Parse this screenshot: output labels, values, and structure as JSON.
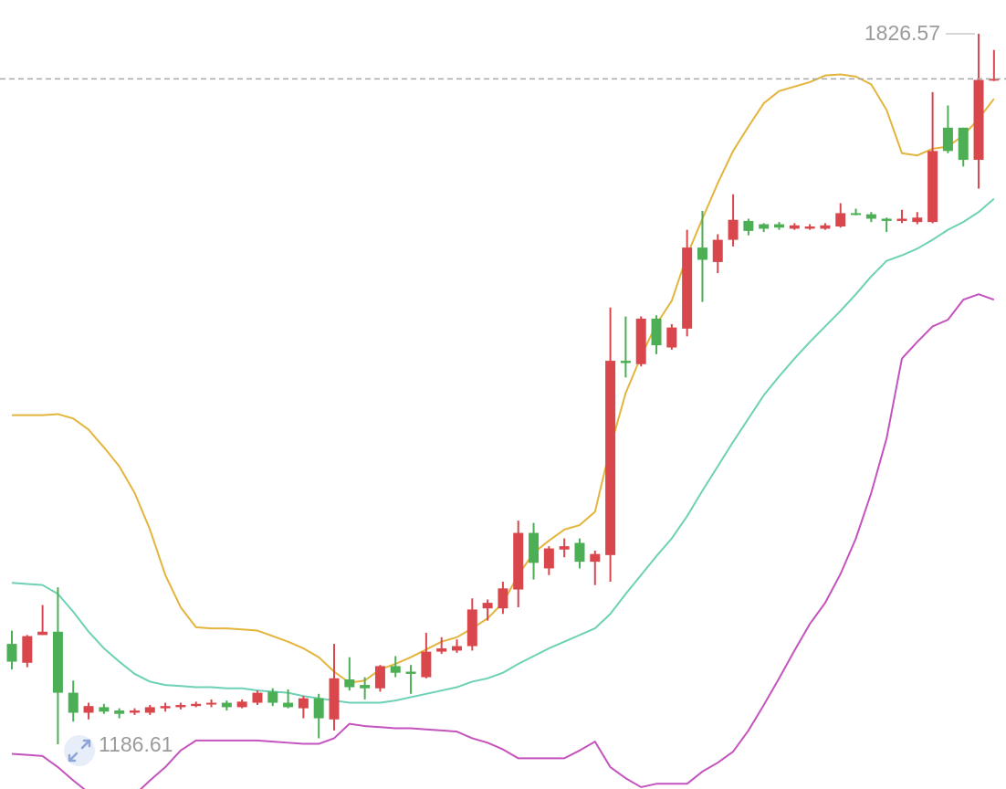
{
  "chart_data": {
    "type": "candlestick",
    "up_color": "#d9474d",
    "down_color": "#4cae55",
    "ylim": [
      1146.3,
      1857
    ],
    "open": [
      1277,
      1260,
      1285,
      1288,
      1233,
      1215,
      1220,
      1217,
      1215,
      1215,
      1219,
      1220,
      1221,
      1223,
      1224,
      1220,
      1224,
      1234,
      1224,
      1219,
      1228,
      1209,
      1245,
      1240,
      1237,
      1257,
      1252,
      1247,
      1270,
      1271,
      1275,
      1309,
      1309,
      1326,
      1377,
      1345,
      1362,
      1368,
      1351,
      1357,
      1532,
      1529,
      1570,
      1544,
      1561,
      1634,
      1621,
      1641,
      1658,
      1655,
      1655,
      1651,
      1651,
      1651,
      1653,
      1665,
      1664,
      1660,
      1658,
      1657,
      1657,
      1742,
      1742,
      1713,
      1785
    ],
    "high": [
      1289,
      1285,
      1312,
      1328,
      1244,
      1224,
      1223,
      1219,
      1219,
      1222,
      1224,
      1224,
      1225,
      1227,
      1226,
      1227,
      1235,
      1237,
      1236,
      1230,
      1232,
      1277,
      1265,
      1247,
      1258,
      1266,
      1258,
      1287,
      1283,
      1281,
      1318,
      1317,
      1333,
      1388,
      1386,
      1365,
      1372,
      1372,
      1361,
      1580,
      1572,
      1572,
      1573,
      1565,
      1650,
      1667,
      1646,
      1682,
      1660,
      1656,
      1657,
      1656,
      1655,
      1656,
      1674,
      1669,
      1666,
      1661,
      1668,
      1666,
      1774,
      1762,
      1742,
      1826.57,
      1812
    ],
    "low": [
      1254,
      1256,
      1285,
      1186.61,
      1207,
      1209,
      1214,
      1210,
      1213,
      1213,
      1216,
      1218,
      1220,
      1220,
      1217,
      1219,
      1222,
      1221,
      1219,
      1210,
      1192,
      1199,
      1235,
      1227,
      1234,
      1247,
      1232,
      1246,
      1268,
      1269,
      1271,
      1298,
      1304,
      1310,
      1335,
      1339,
      1355,
      1345,
      1330,
      1333,
      1517,
      1527,
      1538,
      1542,
      1554,
      1585,
      1611,
      1635,
      1645,
      1648,
      1650,
      1650,
      1650,
      1650,
      1652,
      1663,
      1657,
      1648,
      1656,
      1655,
      1656,
      1719,
      1707,
      1687,
      1784
    ],
    "close": [
      1261,
      1284,
      1288,
      1233,
      1215,
      1221,
      1216,
      1214,
      1217,
      1220,
      1221,
      1222,
      1223,
      1224,
      1220,
      1225,
      1233,
      1224,
      1220,
      1228,
      1210,
      1246,
      1238,
      1237,
      1257,
      1251,
      1250,
      1270,
      1273,
      1275,
      1308,
      1314,
      1327,
      1377,
      1350,
      1363,
      1365,
      1351,
      1358,
      1532,
      1530,
      1570,
      1546,
      1562,
      1634,
      1623,
      1641,
      1659,
      1649,
      1651,
      1652,
      1654,
      1653,
      1654,
      1665,
      1664,
      1660,
      1658,
      1660,
      1661,
      1721,
      1721,
      1713,
      1785,
      1786
    ],
    "lines": [
      {
        "color": "#e3b53c",
        "values": [
          1483,
          1483,
          1483,
          1484,
          1480,
          1470,
          1454,
          1437,
          1413,
          1380,
          1339,
          1310,
          1292,
          1291,
          1291,
          1290,
          1289,
          1284,
          1279,
          1273,
          1265,
          1252,
          1242,
          1244,
          1254,
          1259,
          1265,
          1272,
          1279,
          1283,
          1291,
          1300,
          1314,
          1339,
          1359,
          1370,
          1380,
          1384,
          1396,
          1454,
          1503,
          1536,
          1565,
          1586,
          1627,
          1660,
          1692,
          1721,
          1743,
          1764,
          1775,
          1779,
          1783,
          1789,
          1790,
          1788,
          1781,
          1758,
          1719,
          1717,
          1723,
          1725,
          1735,
          1750,
          1768
        ]
      },
      {
        "color": "#6dd1b5",
        "values": [
          1332,
          1331,
          1330,
          1322,
          1306,
          1288,
          1273,
          1261,
          1250,
          1243,
          1240,
          1239,
          1238,
          1238,
          1237,
          1237,
          1235,
          1234,
          1233,
          1230,
          1228,
          1226,
          1224,
          1224,
          1224,
          1226,
          1229,
          1232,
          1235,
          1238,
          1243,
          1246,
          1251,
          1259,
          1266,
          1273,
          1279,
          1285,
          1291,
          1304,
          1322,
          1339,
          1356,
          1372,
          1392,
          1415,
          1437,
          1459,
          1480,
          1501,
          1518,
          1534,
          1549,
          1563,
          1577,
          1592,
          1608,
          1622,
          1627,
          1633,
          1641,
          1650,
          1657,
          1666,
          1678
        ]
      },
      {
        "color": "#c453bd",
        "values": [
          1178,
          1177,
          1176,
          1166,
          1154,
          1143,
          1133,
          1133,
          1141,
          1154,
          1166,
          1181,
          1190,
          1190,
          1190,
          1190,
          1190,
          1189,
          1188,
          1187,
          1187,
          1192,
          1205,
          1203,
          1202,
          1201,
          1201,
          1200,
          1199,
          1198,
          1192,
          1188,
          1182,
          1174,
          1174,
          1174,
          1174,
          1181,
          1189,
          1166,
          1156,
          1148,
          1151,
          1151,
          1151,
          1162,
          1170,
          1180,
          1199,
          1222,
          1246,
          1271,
          1295,
          1314,
          1340,
          1372,
          1413,
          1462,
          1534,
          1549,
          1563,
          1569,
          1587,
          1592,
          1587
        ]
      }
    ]
  }
}
